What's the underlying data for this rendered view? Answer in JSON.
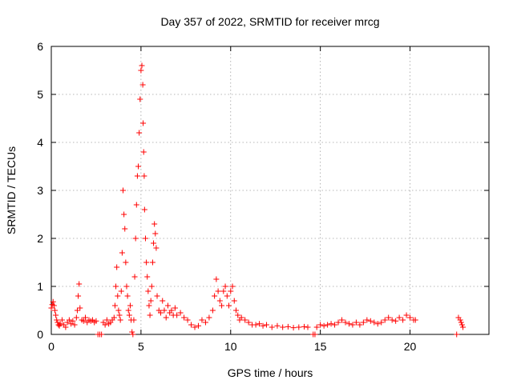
{
  "chart_data": {
    "type": "scatter",
    "title": "Day 357 of 2022, SRMTID for receiver mrcg",
    "xlabel": "GPS time / hours",
    "ylabel": "SRMTID / TECUs",
    "xlim": [
      0,
      24.4
    ],
    "ylim": [
      0,
      6
    ],
    "xticks": [
      0,
      5,
      10,
      15,
      20
    ],
    "xtick_labels": [
      "0",
      "5",
      "10",
      "15",
      "20"
    ],
    "yticks": [
      0,
      1,
      2,
      3,
      4,
      5,
      6
    ],
    "ytick_labels": [
      "0",
      "1",
      "2",
      "3",
      "4",
      "5",
      "6"
    ],
    "grid": true,
    "marker": "+",
    "color": "#ff0000",
    "series": [
      {
        "name": "SRMTID",
        "points": [
          [
            0.0,
            0.55
          ],
          [
            0.05,
            0.62
          ],
          [
            0.1,
            0.68
          ],
          [
            0.15,
            0.6
          ],
          [
            0.2,
            0.5
          ],
          [
            0.25,
            0.4
          ],
          [
            0.3,
            0.3
          ],
          [
            0.35,
            0.25
          ],
          [
            0.4,
            0.2
          ],
          [
            0.45,
            0.18
          ],
          [
            0.5,
            0.22
          ],
          [
            0.6,
            0.3
          ],
          [
            0.7,
            0.2
          ],
          [
            0.8,
            0.15
          ],
          [
            0.9,
            0.25
          ],
          [
            1.0,
            0.3
          ],
          [
            1.1,
            0.22
          ],
          [
            1.2,
            0.28
          ],
          [
            1.3,
            0.2
          ],
          [
            1.4,
            0.35
          ],
          [
            1.45,
            0.5
          ],
          [
            1.5,
            0.8
          ],
          [
            1.55,
            1.05
          ],
          [
            1.6,
            0.55
          ],
          [
            1.7,
            0.3
          ],
          [
            1.8,
            0.28
          ],
          [
            1.9,
            0.35
          ],
          [
            2.0,
            0.25
          ],
          [
            2.1,
            0.3
          ],
          [
            2.2,
            0.28
          ],
          [
            2.3,
            0.3
          ],
          [
            2.4,
            0.25
          ],
          [
            2.5,
            0.28
          ],
          [
            2.6,
            0.0
          ],
          [
            2.7,
            0.0
          ],
          [
            2.8,
            0.0
          ],
          [
            2.9,
            0.25
          ],
          [
            3.0,
            0.2
          ],
          [
            3.1,
            0.3
          ],
          [
            3.2,
            0.22
          ],
          [
            3.3,
            0.25
          ],
          [
            3.4,
            0.3
          ],
          [
            3.5,
            0.35
          ],
          [
            3.55,
            0.6
          ],
          [
            3.6,
            1.0
          ],
          [
            3.65,
            1.4
          ],
          [
            3.7,
            0.8
          ],
          [
            3.75,
            0.5
          ],
          [
            3.8,
            0.4
          ],
          [
            3.85,
            0.3
          ],
          [
            3.9,
            0.9
          ],
          [
            3.95,
            1.7
          ],
          [
            4.0,
            3.0
          ],
          [
            4.05,
            2.5
          ],
          [
            4.1,
            2.2
          ],
          [
            4.15,
            1.5
          ],
          [
            4.2,
            1.0
          ],
          [
            4.25,
            0.8
          ],
          [
            4.3,
            0.5
          ],
          [
            4.35,
            0.4
          ],
          [
            4.4,
            0.6
          ],
          [
            4.45,
            0.3
          ],
          [
            4.5,
            0.05
          ],
          [
            4.55,
            0.0
          ],
          [
            4.6,
            0.3
          ],
          [
            4.65,
            1.2
          ],
          [
            4.7,
            2.0
          ],
          [
            4.75,
            2.7
          ],
          [
            4.8,
            3.3
          ],
          [
            4.85,
            3.5
          ],
          [
            4.9,
            4.2
          ],
          [
            4.95,
            4.9
          ],
          [
            5.0,
            5.5
          ],
          [
            5.05,
            5.6
          ],
          [
            5.1,
            5.2
          ],
          [
            5.12,
            4.4
          ],
          [
            5.15,
            3.8
          ],
          [
            5.18,
            3.3
          ],
          [
            5.2,
            2.6
          ],
          [
            5.25,
            2.0
          ],
          [
            5.3,
            1.5
          ],
          [
            5.35,
            1.2
          ],
          [
            5.4,
            0.9
          ],
          [
            5.45,
            0.6
          ],
          [
            5.5,
            0.4
          ],
          [
            5.55,
            0.7
          ],
          [
            5.6,
            1.0
          ],
          [
            5.65,
            1.5
          ],
          [
            5.7,
            1.9
          ],
          [
            5.75,
            2.3
          ],
          [
            5.8,
            2.1
          ],
          [
            5.85,
            1.8
          ],
          [
            5.9,
            0.8
          ],
          [
            6.0,
            0.5
          ],
          [
            6.1,
            0.45
          ],
          [
            6.2,
            0.7
          ],
          [
            6.3,
            0.5
          ],
          [
            6.4,
            0.35
          ],
          [
            6.5,
            0.6
          ],
          [
            6.6,
            0.45
          ],
          [
            6.7,
            0.5
          ],
          [
            6.8,
            0.4
          ],
          [
            6.9,
            0.55
          ],
          [
            7.0,
            0.4
          ],
          [
            7.2,
            0.45
          ],
          [
            7.4,
            0.35
          ],
          [
            7.6,
            0.3
          ],
          [
            7.8,
            0.2
          ],
          [
            8.0,
            0.15
          ],
          [
            8.2,
            0.18
          ],
          [
            8.4,
            0.3
          ],
          [
            8.6,
            0.25
          ],
          [
            8.8,
            0.35
          ],
          [
            9.0,
            0.5
          ],
          [
            9.1,
            0.8
          ],
          [
            9.2,
            1.15
          ],
          [
            9.3,
            0.9
          ],
          [
            9.4,
            0.7
          ],
          [
            9.5,
            0.6
          ],
          [
            9.6,
            0.9
          ],
          [
            9.7,
            1.0
          ],
          [
            9.8,
            0.8
          ],
          [
            9.9,
            0.6
          ],
          [
            10.0,
            0.9
          ],
          [
            10.1,
            1.0
          ],
          [
            10.2,
            0.7
          ],
          [
            10.3,
            0.5
          ],
          [
            10.4,
            0.4
          ],
          [
            10.5,
            0.3
          ],
          [
            10.6,
            0.35
          ],
          [
            10.8,
            0.3
          ],
          [
            11.0,
            0.25
          ],
          [
            11.2,
            0.2
          ],
          [
            11.4,
            0.2
          ],
          [
            11.6,
            0.22
          ],
          [
            11.8,
            0.18
          ],
          [
            12.0,
            0.2
          ],
          [
            12.3,
            0.15
          ],
          [
            12.6,
            0.18
          ],
          [
            12.9,
            0.15
          ],
          [
            13.2,
            0.16
          ],
          [
            13.5,
            0.14
          ],
          [
            13.8,
            0.15
          ],
          [
            14.1,
            0.16
          ],
          [
            14.3,
            0.15
          ],
          [
            14.6,
            0.0
          ],
          [
            14.7,
            0.0
          ],
          [
            14.8,
            0.15
          ],
          [
            15.0,
            0.2
          ],
          [
            15.2,
            0.18
          ],
          [
            15.4,
            0.2
          ],
          [
            15.6,
            0.22
          ],
          [
            15.8,
            0.2
          ],
          [
            16.0,
            0.25
          ],
          [
            16.2,
            0.3
          ],
          [
            16.4,
            0.25
          ],
          [
            16.6,
            0.22
          ],
          [
            16.8,
            0.2
          ],
          [
            17.0,
            0.25
          ],
          [
            17.2,
            0.2
          ],
          [
            17.4,
            0.25
          ],
          [
            17.6,
            0.3
          ],
          [
            17.8,
            0.28
          ],
          [
            18.0,
            0.25
          ],
          [
            18.2,
            0.22
          ],
          [
            18.4,
            0.25
          ],
          [
            18.6,
            0.3
          ],
          [
            18.8,
            0.35
          ],
          [
            19.0,
            0.3
          ],
          [
            19.2,
            0.28
          ],
          [
            19.4,
            0.35
          ],
          [
            19.6,
            0.3
          ],
          [
            19.8,
            0.4
          ],
          [
            20.0,
            0.35
          ],
          [
            20.2,
            0.3
          ],
          [
            20.3,
            0.3
          ],
          [
            22.6,
            0.0
          ],
          [
            22.7,
            0.35
          ],
          [
            22.8,
            0.3
          ],
          [
            22.85,
            0.25
          ],
          [
            22.9,
            0.2
          ],
          [
            22.95,
            0.15
          ]
        ]
      }
    ]
  }
}
